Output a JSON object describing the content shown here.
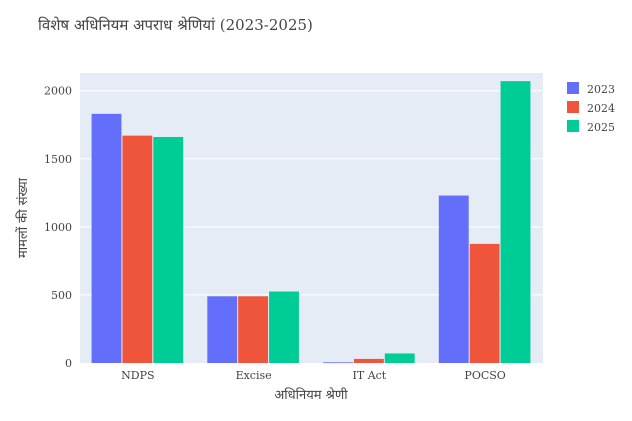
{
  "chart_data": {
    "type": "bar",
    "title": "विशेष अधिनियम अपराध श्रेणियां (2023-2025)",
    "xlabel": "अधिनियम श्रेणी",
    "ylabel": "मामलों की संख्या",
    "categories": [
      "NDPS",
      "Excise",
      "IT Act",
      "POCSO"
    ],
    "series": [
      {
        "name": "2023",
        "color": "#636efa",
        "values": [
          1830,
          490,
          5,
          1230
        ]
      },
      {
        "name": "2024",
        "color": "#ef553b",
        "values": [
          1670,
          490,
          30,
          875
        ]
      },
      {
        "name": "2025",
        "color": "#00cc96",
        "values": [
          1660,
          525,
          70,
          2070
        ]
      }
    ],
    "yticks": [
      0,
      500,
      1000,
      1500,
      2000
    ],
    "ylim": [
      0,
      2130
    ],
    "legend_position": "top-right",
    "plot_background": "#e5ecf6",
    "grid_color": "#ffffff"
  }
}
